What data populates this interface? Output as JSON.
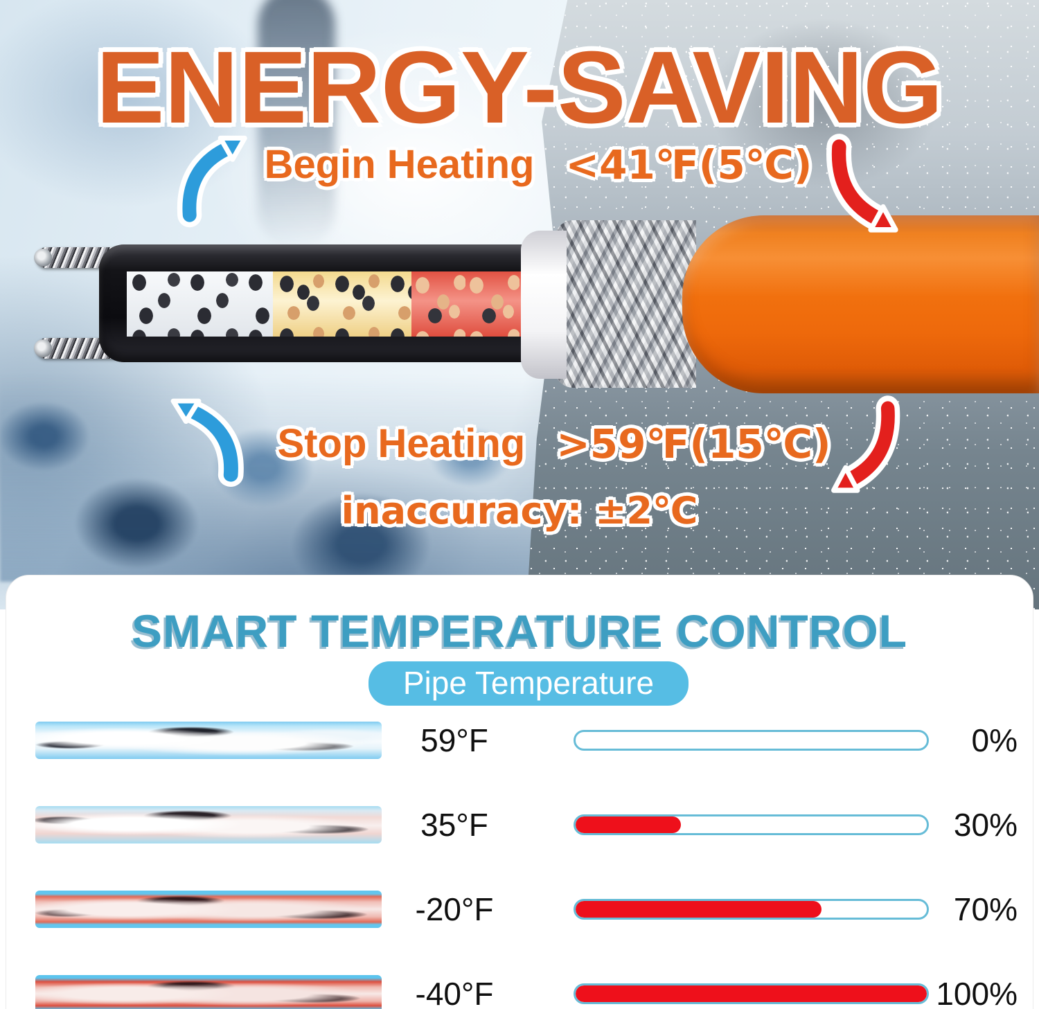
{
  "colors": {
    "title_orange": "#d96027",
    "text_orange": "#e8691e",
    "heading_blue": "#3e9ec2",
    "pill_blue": "#56bde4",
    "bar_border_blue": "#66bcd7",
    "bar_fill_red": "#ee101b",
    "arrow_blue": "#2d9cdb",
    "arrow_red": "#e3201d",
    "cable_orange": "#ee6b14"
  },
  "hero": {
    "title": "ENERGY-SAVING",
    "begin_label": "Begin Heating",
    "begin_value": "<41℉(5℃)",
    "stop_label": "Stop Heating",
    "stop_value": ">59℉(15℃)",
    "inaccuracy_label": "inaccuracy: ±2℃",
    "icons": {
      "begin_arrow": "curved-arrow-up-right",
      "begin_temp_arrow": "curved-arrow-down-right",
      "stop_arrow": "curved-arrow-up-left",
      "stop_temp_arrow": "curved-arrow-down-left"
    }
  },
  "control": {
    "heading": "SMART TEMPERATURE CONTROL",
    "pill_label": "Pipe Temperature",
    "rows": [
      {
        "temp": "59°F",
        "percent_label": "0%",
        "percent_value": 0
      },
      {
        "temp": "35°F",
        "percent_label": "30%",
        "percent_value": 30
      },
      {
        "temp": "-20°F",
        "percent_label": "70%",
        "percent_value": 70
      },
      {
        "temp": "-40°F",
        "percent_label": "100%",
        "percent_value": 100
      }
    ]
  },
  "chart_data": {
    "type": "bar",
    "title": "SMART TEMPERATURE CONTROL",
    "subtitle": "Pipe Temperature",
    "categories": [
      "59°F",
      "35°F",
      "-20°F",
      "-40°F"
    ],
    "values": [
      0,
      30,
      70,
      100
    ],
    "xlabel": "Pipe Temperature",
    "ylabel": "",
    "ylim": [
      0,
      100
    ],
    "legend": false
  }
}
